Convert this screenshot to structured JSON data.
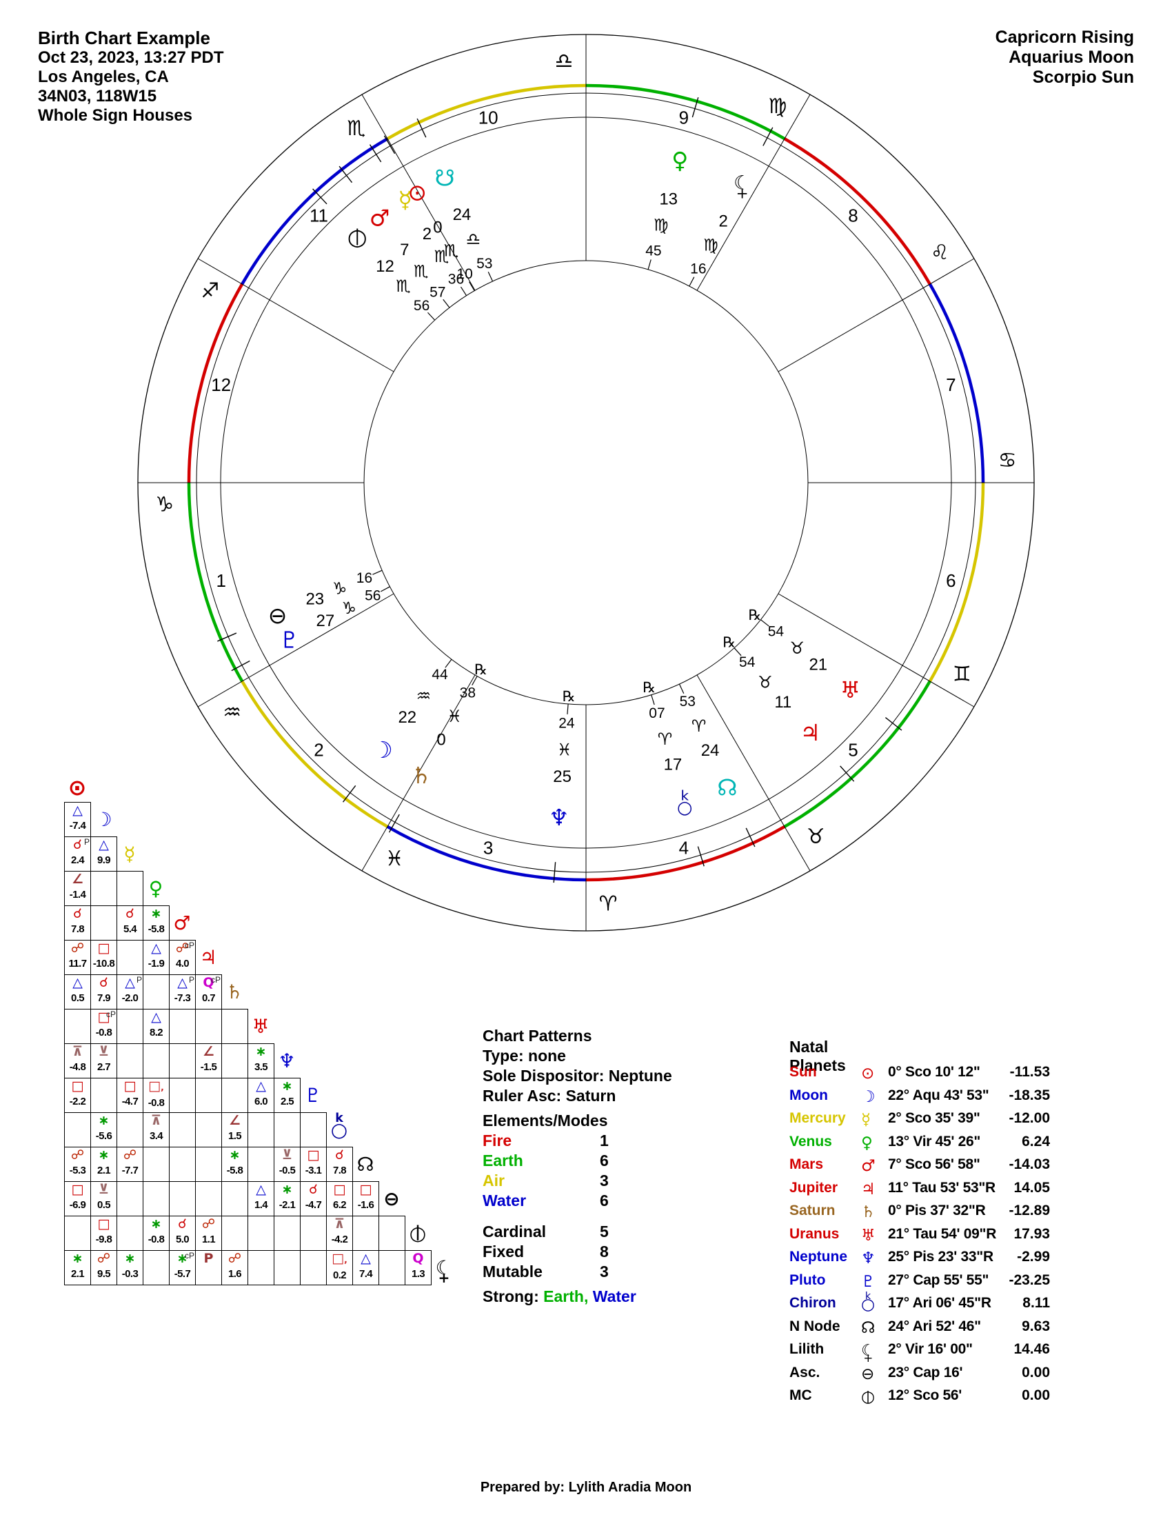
{
  "title_block": {
    "title": "Birth Chart Example",
    "datetime": "Oct 23, 2023, 13:27  PDT",
    "location": "Los Angeles, CA",
    "coordinates": "34N03, 118W15",
    "house_system": "Whole Sign Houses"
  },
  "summary_block": {
    "rising": "Capricorn Rising",
    "moon": "Aquarius Moon",
    "sun": "Scorpio Sun"
  },
  "chart_data": {
    "type": "astrology-natal-wheel",
    "element_colors": {
      "fire": "#d40000",
      "earth": "#00b000",
      "air": "#d6c500",
      "water": "#0000cc"
    },
    "zodiac_signs": [
      {
        "name": "Aries",
        "glyph": "♈",
        "element": "fire",
        "cusp_longitude": 0
      },
      {
        "name": "Taurus",
        "glyph": "♉",
        "element": "earth",
        "cusp_longitude": 30
      },
      {
        "name": "Gemini",
        "glyph": "♊",
        "element": "air",
        "cusp_longitude": 60
      },
      {
        "name": "Cancer",
        "glyph": "♋",
        "element": "water",
        "cusp_longitude": 90
      },
      {
        "name": "Leo",
        "glyph": "♌",
        "element": "fire",
        "cusp_longitude": 120
      },
      {
        "name": "Virgo",
        "glyph": "♍",
        "element": "earth",
        "cusp_longitude": 150
      },
      {
        "name": "Libra",
        "glyph": "♎",
        "element": "air",
        "cusp_longitude": 180
      },
      {
        "name": "Scorpio",
        "glyph": "♏",
        "element": "water",
        "cusp_longitude": 210
      },
      {
        "name": "Sagittarius",
        "glyph": "♐",
        "element": "fire",
        "cusp_longitude": 240
      },
      {
        "name": "Capricorn",
        "glyph": "♑",
        "element": "earth",
        "cusp_longitude": 270
      },
      {
        "name": "Aquarius",
        "glyph": "♒",
        "element": "air",
        "cusp_longitude": 300
      },
      {
        "name": "Pisces",
        "glyph": "♓",
        "element": "water",
        "cusp_longitude": 330
      }
    ],
    "houses": [
      {
        "number": "1",
        "sign": "Capricorn"
      },
      {
        "number": "2",
        "sign": "Aquarius"
      },
      {
        "number": "3",
        "sign": "Pisces"
      },
      {
        "number": "4",
        "sign": "Aries"
      },
      {
        "number": "5",
        "sign": "Taurus"
      },
      {
        "number": "6",
        "sign": "Gemini"
      },
      {
        "number": "7",
        "sign": "Cancer"
      },
      {
        "number": "8",
        "sign": "Leo"
      },
      {
        "number": "9",
        "sign": "Virgo"
      },
      {
        "number": "10",
        "sign": "Libra"
      },
      {
        "number": "11",
        "sign": "Scorpio"
      },
      {
        "number": "12",
        "sign": "Sagittarius"
      }
    ],
    "planets": [
      {
        "name": "Sun",
        "label": "Sun",
        "key": "sun",
        "color": "#d40000",
        "lon": 210.17,
        "wd": "0",
        "ws": "♏",
        "wm": "10",
        "rx": false,
        "pos": "0° Sco 10' 12\"",
        "dec": "-11.53"
      },
      {
        "name": "Moon",
        "label": "Moon",
        "key": "moon",
        "color": "#0000cc",
        "lon": 322.73,
        "wd": "22",
        "ws": "♒",
        "wm": "44",
        "rx": false,
        "pos": "22° Aqu 43' 53\"",
        "dec": "-18.35"
      },
      {
        "name": "Mercury",
        "label": "Mercury",
        "key": "mercury",
        "color": "#d6c500",
        "lon": 212.59,
        "wd": "2",
        "ws": "♏",
        "wm": "36",
        "rx": false,
        "pos": "2° Sco 35' 39\"",
        "dec": "-12.00"
      },
      {
        "name": "Venus",
        "label": "Venus",
        "key": "venus",
        "color": "#00b000",
        "lon": 163.76,
        "wd": "13",
        "ws": "♍",
        "wm": "45",
        "rx": false,
        "pos": "13° Vir 45' 26\"",
        "dec": "6.24"
      },
      {
        "name": "Mars",
        "label": "Mars",
        "key": "mars",
        "color": "#d40000",
        "lon": 217.95,
        "wd": "7",
        "ws": "♏",
        "wm": "57",
        "rx": false,
        "pos": "7° Sco 56' 58\"",
        "dec": "-14.03"
      },
      {
        "name": "Jupiter",
        "label": "Jupiter",
        "key": "jupiter",
        "color": "#d40000",
        "lon": 41.9,
        "wd": "11",
        "ws": "♉",
        "wm": "54",
        "rx": true,
        "pos": "11° Tau 53' 53\"R",
        "dec": "14.05"
      },
      {
        "name": "Saturn",
        "label": "Saturn",
        "key": "saturn",
        "color": "#996622",
        "lon": 330.63,
        "wd": "0",
        "ws": "♓",
        "wm": "38",
        "rx": true,
        "pos": "0° Pis 37' 32\"R",
        "dec": "-12.89"
      },
      {
        "name": "Uranus",
        "label": "Uranus",
        "key": "uranus",
        "color": "#d40000",
        "lon": 51.9,
        "wd": "21",
        "ws": "♉",
        "wm": "54",
        "rx": true,
        "pos": "21° Tau 54' 09\"R",
        "dec": "17.93"
      },
      {
        "name": "Neptune",
        "label": "Neptune",
        "key": "neptune",
        "color": "#0000cc",
        "lon": 355.39,
        "wd": "25",
        "ws": "♓",
        "wm": "24",
        "rx": true,
        "pos": "25° Pis 23' 33\"R",
        "dec": "-2.99"
      },
      {
        "name": "Pluto",
        "label": "Pluto",
        "key": "pluto",
        "color": "#0000cc",
        "lon": 297.93,
        "wd": "27",
        "ws": "♑",
        "wm": "56",
        "rx": false,
        "pos": "27° Cap 55' 55\"",
        "dec": "-23.25"
      },
      {
        "name": "Chiron",
        "label": "Chiron",
        "key": "chiron",
        "color": "#000099",
        "lon": 17.11,
        "wd": "17",
        "ws": "♈",
        "wm": "07",
        "rx": true,
        "pos": "17° Ari 06' 45\"R",
        "dec": "8.11"
      },
      {
        "name": "N Node",
        "label": "N Node",
        "key": "nnode",
        "color": "#000000",
        "wheel_color": "#00b5b5",
        "lon": 24.88,
        "wd": "24",
        "ws": "♈",
        "wm": "53",
        "rx": false,
        "pos": "24° Ari 52' 46\"",
        "dec": "9.63"
      },
      {
        "name": "S Node",
        "label": "S Node",
        "key": "snode",
        "color": "#00b5b5",
        "wheel_color": "#00b5b5",
        "lon": 204.88,
        "wd": "24",
        "ws": "♎",
        "wm": "53",
        "rx": false
      },
      {
        "name": "Lilith",
        "label": "Lilith",
        "key": "lilith",
        "color": "#000000",
        "lon": 152.27,
        "wd": "2",
        "ws": "♍",
        "wm": "16",
        "rx": false,
        "pos": "2° Vir 16' 00\"",
        "dec": "14.46"
      },
      {
        "name": "Asc",
        "label": "Asc.",
        "key": "asc",
        "color": "#000000",
        "lon": 293.27,
        "wd": "23",
        "ws": "♑",
        "wm": "16",
        "rx": false,
        "pos": "23° Cap 16'",
        "dec": "0.00"
      },
      {
        "name": "MC",
        "label": "MC",
        "key": "mc",
        "color": "#000000",
        "lon": 222.93,
        "wd": "12",
        "ws": "♏",
        "wm": "56",
        "rx": false,
        "pos": "12° Sco 56'",
        "dec": "0.00"
      }
    ],
    "aspects": [
      {
        "a": "Moon",
        "b": "Sun",
        "t": "trine",
        "o": "-7.4",
        "s": ""
      },
      {
        "a": "Mercury",
        "b": "Sun",
        "t": "conj",
        "o": "2.4",
        "s": "P"
      },
      {
        "a": "Mercury",
        "b": "Moon",
        "t": "trine",
        "o": "9.9",
        "s": ""
      },
      {
        "a": "Venus",
        "b": "Sun",
        "t": "semisquare",
        "o": "-1.4",
        "s": ""
      },
      {
        "a": "Mars",
        "b": "Sun",
        "t": "conj",
        "o": "7.8",
        "s": ""
      },
      {
        "a": "Mars",
        "b": "Mercury",
        "t": "conj",
        "o": "5.4",
        "s": ""
      },
      {
        "a": "Mars",
        "b": "Venus",
        "t": "sextile",
        "o": "-5.8",
        "s": ""
      },
      {
        "a": "Jupiter",
        "b": "Sun",
        "t": "opp",
        "o": "11.7",
        "s": ""
      },
      {
        "a": "Jupiter",
        "b": "Moon",
        "t": "square",
        "o": "-10.8",
        "s": ""
      },
      {
        "a": "Jupiter",
        "b": "Venus",
        "t": "trine",
        "o": "-1.9",
        "s": ""
      },
      {
        "a": "Jupiter",
        "b": "Mars",
        "t": "opp",
        "o": "4.0",
        "s": "cP"
      },
      {
        "a": "Saturn",
        "b": "Sun",
        "t": "trine",
        "o": "0.5",
        "s": ""
      },
      {
        "a": "Saturn",
        "b": "Moon",
        "t": "conj",
        "o": "7.9",
        "s": ""
      },
      {
        "a": "Saturn",
        "b": "Mercury",
        "t": "trine",
        "o": "-2.0",
        "s": "P"
      },
      {
        "a": "Saturn",
        "b": "Mars",
        "t": "trine",
        "o": "-7.3",
        "s": "P"
      },
      {
        "a": "Saturn",
        "b": "Jupiter",
        "t": "quintile",
        "o": "0.7",
        "s": "cP"
      },
      {
        "a": "Uranus",
        "b": "Moon",
        "t": "square",
        "o": "-0.8",
        "s": "cP"
      },
      {
        "a": "Uranus",
        "b": "Venus",
        "t": "trine",
        "o": "8.2",
        "s": ""
      },
      {
        "a": "Neptune",
        "b": "Sun",
        "t": "quincunx",
        "o": "-4.8",
        "s": ""
      },
      {
        "a": "Neptune",
        "b": "Moon",
        "t": "semisextile",
        "o": "2.7",
        "s": ""
      },
      {
        "a": "Neptune",
        "b": "Jupiter",
        "t": "semisquare",
        "o": "-1.5",
        "s": ""
      },
      {
        "a": "Neptune",
        "b": "Uranus",
        "t": "sextile",
        "o": "3.5",
        "s": ""
      },
      {
        "a": "Pluto",
        "b": "Sun",
        "t": "square",
        "o": "-2.2",
        "s": ""
      },
      {
        "a": "Pluto",
        "b": "Mercury",
        "t": "square",
        "o": "-4.7",
        "s": ""
      },
      {
        "a": "Pluto",
        "b": "Venus",
        "t": "sesquiquadrate",
        "o": "-0.8",
        "s": ""
      },
      {
        "a": "Pluto",
        "b": "Uranus",
        "t": "trine",
        "o": "6.0",
        "s": ""
      },
      {
        "a": "Pluto",
        "b": "Neptune",
        "t": "sextile",
        "o": "2.5",
        "s": ""
      },
      {
        "a": "Chiron",
        "b": "Moon",
        "t": "sextile",
        "o": "-5.6",
        "s": ""
      },
      {
        "a": "Chiron",
        "b": "Venus",
        "t": "quincunx",
        "o": "3.4",
        "s": ""
      },
      {
        "a": "Chiron",
        "b": "Saturn",
        "t": "semisquare",
        "o": "1.5",
        "s": ""
      },
      {
        "a": "N Node",
        "b": "Sun",
        "t": "opp",
        "o": "-5.3",
        "s": ""
      },
      {
        "a": "N Node",
        "b": "Moon",
        "t": "sextile",
        "o": "2.1",
        "s": ""
      },
      {
        "a": "N Node",
        "b": "Mercury",
        "t": "opp",
        "o": "-7.7",
        "s": ""
      },
      {
        "a": "N Node",
        "b": "Saturn",
        "t": "sextile",
        "o": "-5.8",
        "s": ""
      },
      {
        "a": "N Node",
        "b": "Neptune",
        "t": "semisextile",
        "o": "-0.5",
        "s": ""
      },
      {
        "a": "N Node",
        "b": "Pluto",
        "t": "square",
        "o": "-3.1",
        "s": ""
      },
      {
        "a": "N Node",
        "b": "Chiron",
        "t": "conj",
        "o": "7.8",
        "s": ""
      },
      {
        "a": "Asc",
        "b": "Sun",
        "t": "square",
        "o": "-6.9",
        "s": ""
      },
      {
        "a": "Asc",
        "b": "Moon",
        "t": "semisextile",
        "o": "0.5",
        "s": ""
      },
      {
        "a": "Asc",
        "b": "Uranus",
        "t": "trine",
        "o": "1.4",
        "s": ""
      },
      {
        "a": "Asc",
        "b": "Neptune",
        "t": "sextile",
        "o": "-2.1",
        "s": ""
      },
      {
        "a": "Asc",
        "b": "Pluto",
        "t": "conj",
        "o": "-4.7",
        "s": ""
      },
      {
        "a": "Asc",
        "b": "Chiron",
        "t": "square",
        "o": "6.2",
        "s": ""
      },
      {
        "a": "Asc",
        "b": "N Node",
        "t": "square",
        "o": "-1.6",
        "s": ""
      },
      {
        "a": "MC",
        "b": "Moon",
        "t": "square",
        "o": "-9.8",
        "s": ""
      },
      {
        "a": "MC",
        "b": "Venus",
        "t": "sextile",
        "o": "-0.8",
        "s": ""
      },
      {
        "a": "MC",
        "b": "Mars",
        "t": "conj",
        "o": "5.0",
        "s": ""
      },
      {
        "a": "MC",
        "b": "Jupiter",
        "t": "opp",
        "o": "1.1",
        "s": ""
      },
      {
        "a": "MC",
        "b": "Chiron",
        "t": "quincunx",
        "o": "-4.2",
        "s": ""
      },
      {
        "a": "Lilith",
        "b": "Sun",
        "t": "sextile",
        "o": "2.1",
        "s": ""
      },
      {
        "a": "Lilith",
        "b": "Moon",
        "t": "opp",
        "o": "9.5",
        "s": ""
      },
      {
        "a": "Lilith",
        "b": "Mercury",
        "t": "sextile",
        "o": "-0.3",
        "s": ""
      },
      {
        "a": "Lilith",
        "b": "Mars",
        "t": "sextile",
        "o": "-5.7",
        "s": "cP"
      },
      {
        "a": "Lilith",
        "b": "Jupiter",
        "t": "parallel",
        "o": "",
        "s": ""
      },
      {
        "a": "Lilith",
        "b": "Saturn",
        "t": "opp",
        "o": "1.6",
        "s": ""
      },
      {
        "a": "Lilith",
        "b": "Chiron",
        "t": "sesquiquadrate",
        "o": "0.2",
        "s": ""
      },
      {
        "a": "Lilith",
        "b": "N Node",
        "t": "trine",
        "o": "7.4",
        "s": ""
      },
      {
        "a": "Lilith",
        "b": "MC",
        "t": "quintile",
        "o": "1.3",
        "s": ""
      }
    ]
  },
  "aspect_grid": {
    "grid_order": [
      "Sun",
      "Moon",
      "Mercury",
      "Venus",
      "Mars",
      "Jupiter",
      "Saturn",
      "Uranus",
      "Neptune",
      "Pluto",
      "Chiron",
      "N Node",
      "Asc",
      "MC",
      "Lilith"
    ]
  },
  "natal_table": {
    "title": "Natal Planets",
    "order": [
      "Sun",
      "Moon",
      "Mercury",
      "Venus",
      "Mars",
      "Jupiter",
      "Saturn",
      "Uranus",
      "Neptune",
      "Pluto",
      "Chiron",
      "N Node",
      "Lilith",
      "Asc",
      "MC"
    ]
  },
  "chart_patterns": {
    "title": "Chart Patterns",
    "type_line": "Type: none",
    "dispositor_line": "Sole Dispositor: Neptune",
    "ruler_line": "Ruler Asc: Saturn",
    "elements_title": "Elements/Modes",
    "elements": [
      {
        "label": "Fire",
        "value": "1",
        "color": "#d40000"
      },
      {
        "label": "Earth",
        "value": "6",
        "color": "#00b000"
      },
      {
        "label": "Air",
        "value": "3",
        "color": "#d6c500"
      },
      {
        "label": "Water",
        "value": "6",
        "color": "#0000cc"
      }
    ],
    "modes": [
      {
        "label": "Cardinal",
        "value": "5"
      },
      {
        "label": "Fixed",
        "value": "8"
      },
      {
        "label": "Mutable",
        "value": "3"
      }
    ],
    "strong_label": "Strong:",
    "strong": [
      {
        "text": "Earth,",
        "color": "#00b000"
      },
      {
        "text": "Water",
        "color": "#0000cc"
      }
    ]
  },
  "footer": {
    "prepared_by": "Prepared by: Lylith Aradia Moon"
  }
}
